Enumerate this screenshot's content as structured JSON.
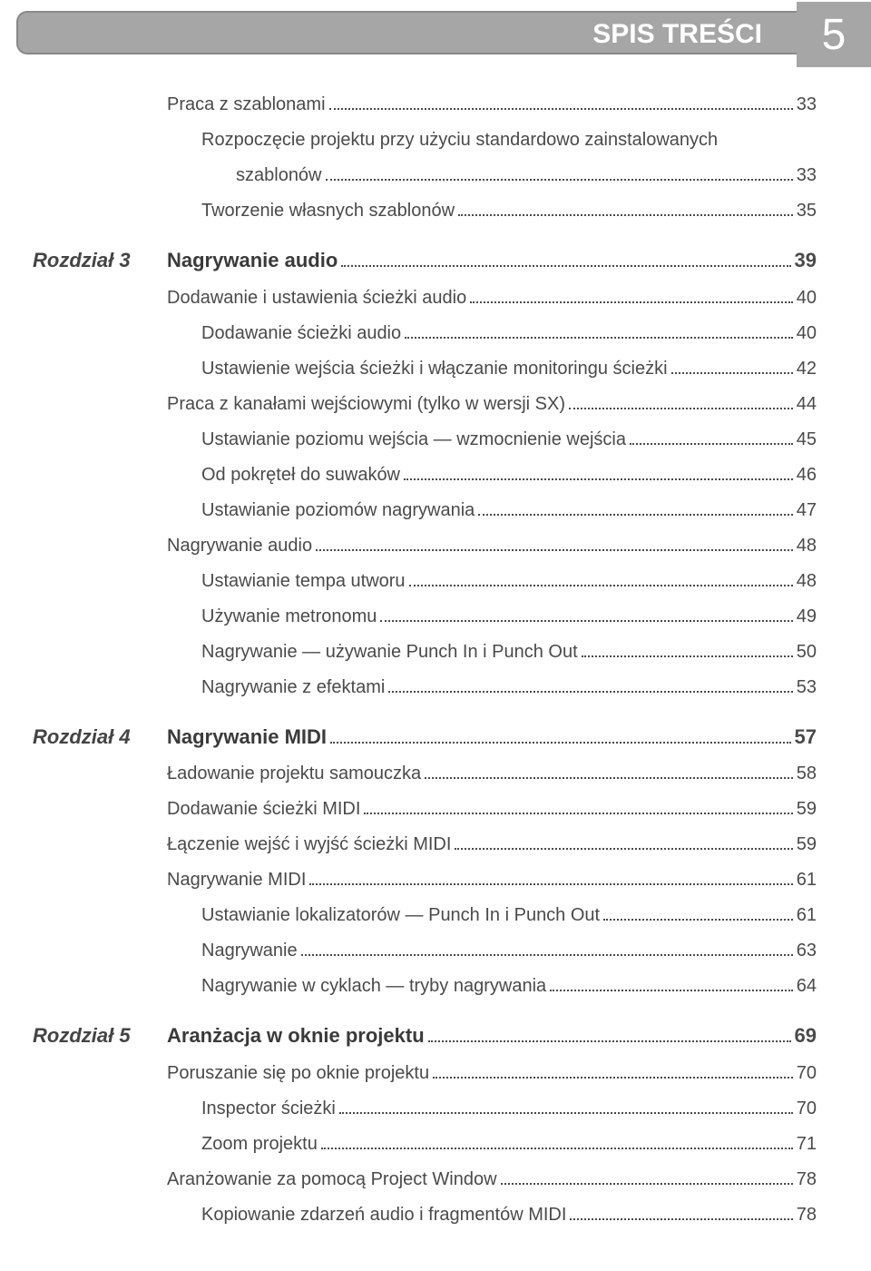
{
  "header": {
    "title": "SPIS TREŚCI",
    "page_number": "5"
  },
  "colors": {
    "header_bg": "#a6a6a6",
    "header_text": "#ffffff",
    "body_text": "#4a4a4a",
    "page_bg": "#ffffff"
  },
  "fonts": {
    "body_size_pt": 15,
    "chapter_size_pt": 16,
    "header_size_pt": 22,
    "pagenum_size_pt": 36
  },
  "entries": [
    {
      "chapter": "",
      "text": "Praca z szablonami",
      "page": "33",
      "indent": 0,
      "bold": false
    },
    {
      "chapter": "",
      "text": "Rozpoczęcie projektu przy użyciu standardowo zainstalowanych",
      "page": "",
      "indent": 1,
      "bold": false,
      "noleader": true
    },
    {
      "chapter": "",
      "text": "szablonów",
      "page": "33",
      "indent": 2,
      "bold": false
    },
    {
      "chapter": "",
      "text": "Tworzenie własnych szablonów",
      "page": "35",
      "indent": 1,
      "bold": false
    },
    {
      "chapter": "Rozdział 3",
      "text": "Nagrywanie audio",
      "page": "39",
      "indent": 0,
      "bold": true,
      "gap": true
    },
    {
      "chapter": "",
      "text": "Dodawanie i ustawienia ścieżki audio",
      "page": "40",
      "indent": 0,
      "bold": false
    },
    {
      "chapter": "",
      "text": "Dodawanie ścieżki audio",
      "page": "40",
      "indent": 1,
      "bold": false
    },
    {
      "chapter": "",
      "text": "Ustawienie wejścia ścieżki i włączanie monitoringu ścieżki",
      "page": "42",
      "indent": 1,
      "bold": false
    },
    {
      "chapter": "",
      "text": "Praca z kanałami wejściowymi (tylko w wersji SX)",
      "page": "44",
      "indent": 0,
      "bold": false
    },
    {
      "chapter": "",
      "text": "Ustawianie poziomu wejścia — wzmocnienie wejścia",
      "page": "45",
      "indent": 1,
      "bold": false
    },
    {
      "chapter": "",
      "text": "Od pokręteł do suwaków",
      "page": "46",
      "indent": 1,
      "bold": false
    },
    {
      "chapter": "",
      "text": "Ustawianie poziomów nagrywania",
      "page": "47",
      "indent": 1,
      "bold": false
    },
    {
      "chapter": "",
      "text": "Nagrywanie audio",
      "page": "48",
      "indent": 0,
      "bold": false
    },
    {
      "chapter": "",
      "text": "Ustawianie tempa utworu",
      "page": "48",
      "indent": 1,
      "bold": false
    },
    {
      "chapter": "",
      "text": "Używanie metronomu",
      "page": "49",
      "indent": 1,
      "bold": false
    },
    {
      "chapter": "",
      "text": "Nagrywanie — używanie Punch In i Punch Out",
      "page": "50",
      "indent": 1,
      "bold": false
    },
    {
      "chapter": "",
      "text": "Nagrywanie z efektami",
      "page": "53",
      "indent": 1,
      "bold": false
    },
    {
      "chapter": "Rozdział 4",
      "text": "Nagrywanie MIDI",
      "page": "57",
      "indent": 0,
      "bold": true,
      "gap": true
    },
    {
      "chapter": "",
      "text": "Ładowanie projektu samouczka",
      "page": "58",
      "indent": 0,
      "bold": false
    },
    {
      "chapter": "",
      "text": "Dodawanie ścieżki MIDI",
      "page": "59",
      "indent": 0,
      "bold": false
    },
    {
      "chapter": "",
      "text": "Łączenie wejść i wyjść ścieżki MIDI",
      "page": "59",
      "indent": 0,
      "bold": false
    },
    {
      "chapter": "",
      "text": "Nagrywanie MIDI",
      "page": "61",
      "indent": 0,
      "bold": false
    },
    {
      "chapter": "",
      "text": "Ustawianie lokalizatorów — Punch In i Punch Out",
      "page": "61",
      "indent": 1,
      "bold": false
    },
    {
      "chapter": "",
      "text": "Nagrywanie",
      "page": "63",
      "indent": 1,
      "bold": false
    },
    {
      "chapter": "",
      "text": "Nagrywanie w cyklach — tryby nagrywania",
      "page": "64",
      "indent": 1,
      "bold": false
    },
    {
      "chapter": "Rozdział 5",
      "text": "Aranżacja w oknie projektu",
      "page": "69",
      "indent": 0,
      "bold": true,
      "gap": true
    },
    {
      "chapter": "",
      "text": "Poruszanie się po oknie projektu",
      "page": "70",
      "indent": 0,
      "bold": false
    },
    {
      "chapter": "",
      "text": "Inspector ścieżki",
      "page": "70",
      "indent": 1,
      "bold": false
    },
    {
      "chapter": "",
      "text": "Zoom projektu",
      "page": "71",
      "indent": 1,
      "bold": false
    },
    {
      "chapter": "",
      "text": "Aranżowanie za pomocą Project Window",
      "page": "78",
      "indent": 0,
      "bold": false
    },
    {
      "chapter": "",
      "text": "Kopiowanie zdarzeń audio i fragmentów MIDI",
      "page": "78",
      "indent": 1,
      "bold": false
    }
  ]
}
